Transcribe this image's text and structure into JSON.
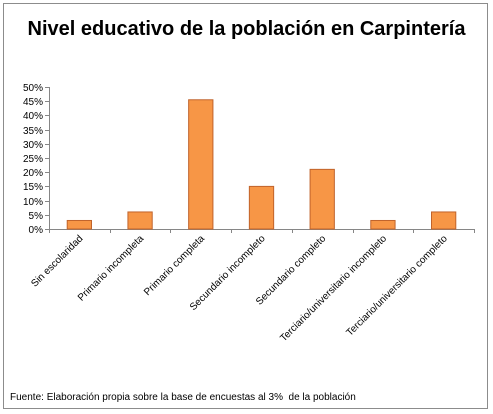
{
  "chart_data": {
    "type": "bar",
    "title": "Nivel educativo de la población en Carpintería",
    "categories": [
      "Sin escolaridad",
      "Primario incompleta",
      "Primario completa",
      "Secundario incompleto",
      "Secundario completo",
      "Terciario/universitario incompleto",
      "Terciario/universitario completo"
    ],
    "values": [
      3,
      6,
      45.5,
      15,
      21,
      3,
      6
    ],
    "ylim": [
      0,
      50
    ],
    "yticks": [
      "0%",
      "5%",
      "10%",
      "15%",
      "20%",
      "25%",
      "30%",
      "35%",
      "40%",
      "45%",
      "50%"
    ],
    "grid": false,
    "legend": "none",
    "bar_color": "#f79646",
    "bar_edge_color": "#c0632b",
    "xlabel": "",
    "ylabel": ""
  },
  "footer": {
    "source": "Fuente: Elaboración propia sobre la base de encuestas al 3%  de la población"
  }
}
